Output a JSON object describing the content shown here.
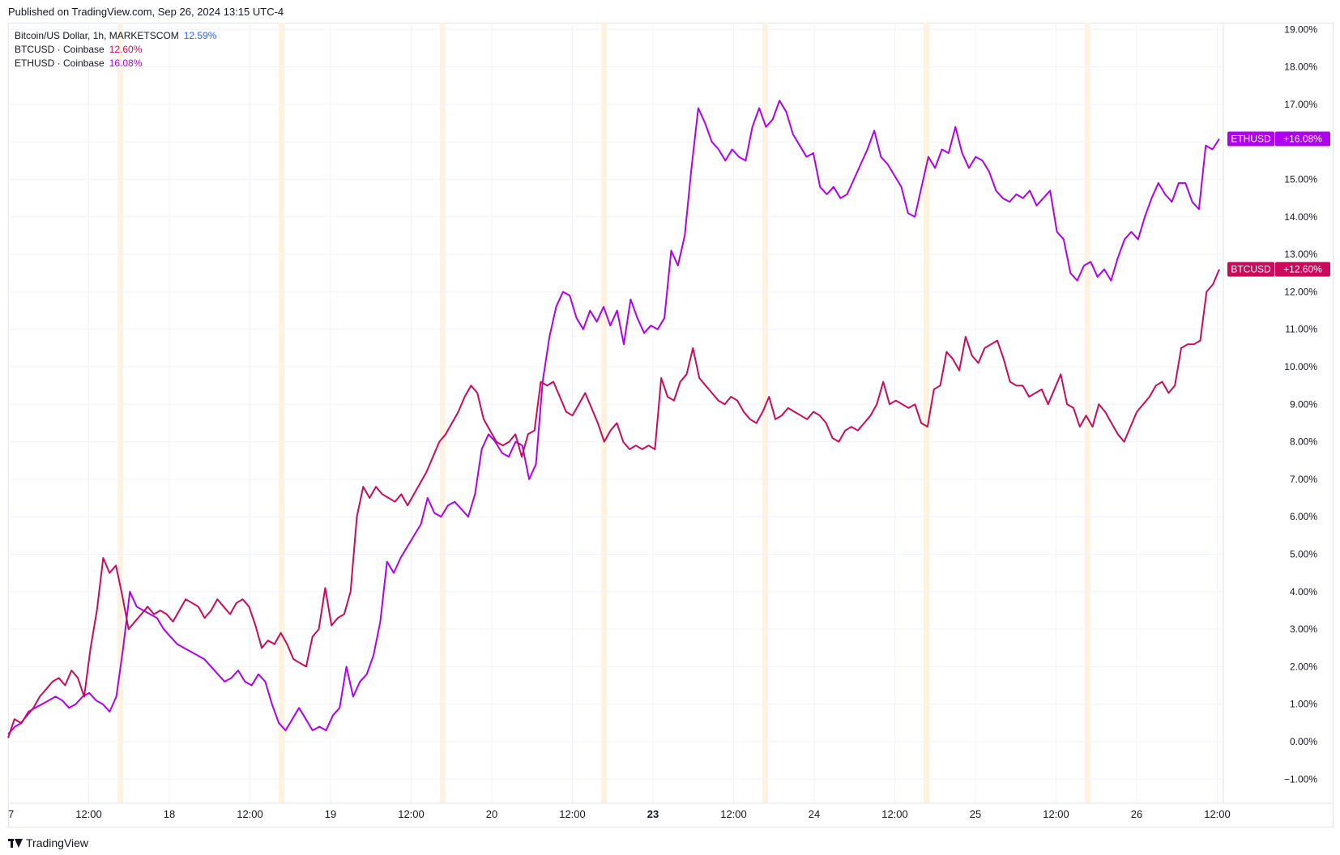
{
  "header": {
    "published": "Published on TradingView.com, Sep 26, 2024 13:15 UTC-4"
  },
  "legend": [
    {
      "name": "Bitcoin/US Dollar, 1h, MARKETSCOM",
      "value": "12.59%",
      "color": "#2962ff"
    },
    {
      "name": "BTCUSD · Coinbase",
      "value": "12.60%",
      "color": "#cc0a5b"
    },
    {
      "name": "ETHUSD · Coinbase",
      "value": "16.08%",
      "color": "#b000f0"
    }
  ],
  "footer": {
    "brand": "TradingView"
  },
  "chart_data": {
    "type": "line",
    "yunit": "%",
    "ylim": [
      -1.7,
      19.7
    ],
    "y_ticks": [
      "19.00%",
      "18.00%",
      "17.00%",
      "16.00%",
      "15.00%",
      "14.00%",
      "13.00%",
      "12.00%",
      "11.00%",
      "10.00%",
      "9.00%",
      "8.00%",
      "7.00%",
      "6.00%",
      "5.00%",
      "4.00%",
      "3.00%",
      "2.00%",
      "1.00%",
      "0.00%",
      "−1.00%"
    ],
    "x_ticks": [
      "7",
      "12:00",
      "18",
      "12:00",
      "19",
      "12:00",
      "20",
      "12:00",
      "23",
      "12:00",
      "24",
      "12:00",
      "25",
      "12:00",
      "26",
      "12:00"
    ],
    "bold_x_tick": "23",
    "grid": true,
    "series": [
      {
        "name": "ETHUSD",
        "label": "ETHUSD",
        "last": "+16.08%",
        "color": "#b000f0",
        "values": [
          0.2,
          0.4,
          0.5,
          0.8,
          0.9,
          1.0,
          1.1,
          1.2,
          1.1,
          0.9,
          1.0,
          1.2,
          1.3,
          1.1,
          1.0,
          0.8,
          1.2,
          2.5,
          4.0,
          3.6,
          3.5,
          3.4,
          3.3,
          3.0,
          2.8,
          2.6,
          2.5,
          2.4,
          2.3,
          2.2,
          2.0,
          1.8,
          1.6,
          1.7,
          1.9,
          1.6,
          1.5,
          1.8,
          1.6,
          1.0,
          0.5,
          0.3,
          0.6,
          0.9,
          0.6,
          0.3,
          0.4,
          0.3,
          0.7,
          0.9,
          2.0,
          1.2,
          1.6,
          1.8,
          2.3,
          3.2,
          4.8,
          4.5,
          4.9,
          5.2,
          5.5,
          5.8,
          6.5,
          6.1,
          6.0,
          6.3,
          6.4,
          6.2,
          6.0,
          6.6,
          7.8,
          8.2,
          8.0,
          7.7,
          7.6,
          8.0,
          7.9,
          7.0,
          7.4,
          9.6,
          10.8,
          11.6,
          12.0,
          11.9,
          11.3,
          11.0,
          11.5,
          11.2,
          11.6,
          11.1,
          11.5,
          10.6,
          11.8,
          11.3,
          10.9,
          11.1,
          11.0,
          11.3,
          13.1,
          12.7,
          13.5,
          15.3,
          16.9,
          16.5,
          16.0,
          15.8,
          15.5,
          15.8,
          15.6,
          15.5,
          16.4,
          16.9,
          16.4,
          16.6,
          17.1,
          16.8,
          16.2,
          15.9,
          15.6,
          15.7,
          14.8,
          14.6,
          14.8,
          14.5,
          14.6,
          15.0,
          15.4,
          15.8,
          16.3,
          15.6,
          15.4,
          15.1,
          14.8,
          14.1,
          14.0,
          14.8,
          15.6,
          15.3,
          15.8,
          15.7,
          16.4,
          15.7,
          15.3,
          15.6,
          15.5,
          15.2,
          14.7,
          14.5,
          14.4,
          14.6,
          14.5,
          14.7,
          14.3,
          14.5,
          14.7,
          13.6,
          13.4,
          12.5,
          12.3,
          12.7,
          12.8,
          12.4,
          12.6,
          12.3,
          12.9,
          13.4,
          13.6,
          13.4,
          14.0,
          14.5,
          14.9,
          14.6,
          14.4,
          14.9,
          14.9,
          14.4,
          14.2,
          15.9,
          15.8,
          16.08
        ]
      },
      {
        "name": "BTCUSD",
        "label": "BTCUSD",
        "last": "+12.60%",
        "color": "#cc0a5b",
        "values": [
          0.1,
          0.6,
          0.5,
          0.7,
          0.9,
          1.2,
          1.4,
          1.6,
          1.7,
          1.5,
          1.9,
          1.7,
          1.2,
          2.5,
          3.5,
          4.9,
          4.5,
          4.7,
          3.9,
          3.0,
          3.2,
          3.4,
          3.6,
          3.4,
          3.5,
          3.4,
          3.2,
          3.5,
          3.8,
          3.7,
          3.6,
          3.3,
          3.5,
          3.8,
          3.6,
          3.4,
          3.7,
          3.8,
          3.6,
          3.1,
          2.5,
          2.7,
          2.6,
          2.9,
          2.6,
          2.2,
          2.1,
          2.0,
          2.8,
          3.0,
          4.1,
          3.1,
          3.3,
          3.4,
          4.0,
          6.0,
          6.8,
          6.5,
          6.8,
          6.6,
          6.5,
          6.4,
          6.6,
          6.3,
          6.6,
          6.9,
          7.2,
          7.6,
          8.0,
          8.2,
          8.5,
          8.8,
          9.2,
          9.5,
          9.3,
          8.6,
          8.3,
          8.0,
          7.9,
          8.0,
          8.2,
          7.6,
          8.2,
          8.3,
          9.6,
          9.5,
          9.6,
          9.2,
          8.8,
          8.7,
          9.0,
          9.3,
          8.9,
          8.5,
          8.0,
          8.3,
          8.5,
          8.0,
          7.8,
          7.9,
          7.8,
          7.9,
          7.8,
          9.7,
          9.2,
          9.1,
          9.6,
          9.8,
          10.5,
          9.7,
          9.5,
          9.3,
          9.1,
          9.0,
          9.2,
          9.1,
          8.8,
          8.6,
          8.5,
          8.8,
          9.2,
          8.6,
          8.7,
          8.9,
          8.8,
          8.7,
          8.6,
          8.8,
          8.7,
          8.5,
          8.1,
          8.0,
          8.3,
          8.4,
          8.3,
          8.5,
          8.7,
          9.0,
          9.6,
          9.0,
          9.1,
          9.0,
          8.9,
          9.0,
          8.5,
          8.4,
          9.4,
          9.5,
          10.4,
          10.2,
          9.9,
          10.8,
          10.3,
          10.1,
          10.5,
          10.6,
          10.7,
          10.2,
          9.6,
          9.5,
          9.5,
          9.2,
          9.3,
          9.4,
          9.0,
          9.4,
          9.8,
          9.0,
          8.9,
          8.4,
          8.7,
          8.4,
          9.0,
          8.8,
          8.5,
          8.2,
          8.0,
          8.4,
          8.8,
          9.0,
          9.2,
          9.5,
          9.6,
          9.3,
          9.5,
          10.5,
          10.6,
          10.6,
          10.7,
          12.0,
          12.2,
          12.6
        ]
      }
    ]
  }
}
